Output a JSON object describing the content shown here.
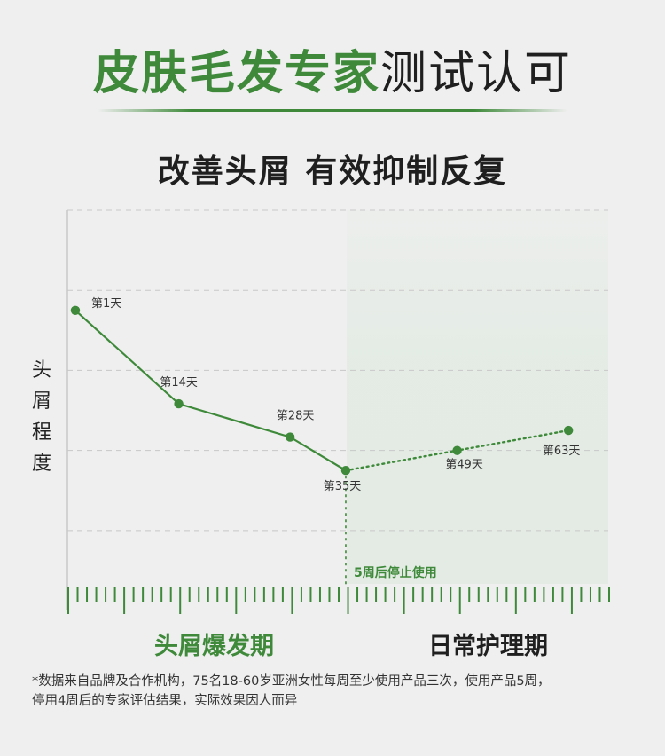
{
  "header": {
    "title_green": "皮肤毛发专家",
    "title_dark": "测试认可",
    "subtitle": "改善头屑 有效抑制反复"
  },
  "colors": {
    "accent": "#3e8a3a",
    "text": "#1f1f1f",
    "background": "#efefef",
    "shaded_region": "#e3ebe4",
    "grid": "#c8c8c8"
  },
  "chart_data": {
    "type": "line",
    "ylabel": "头屑程度",
    "x": [
      1,
      14,
      28,
      35,
      49,
      63
    ],
    "labels": [
      "第1天",
      "第14天",
      "第28天",
      "第35天",
      "第49天",
      "第63天"
    ],
    "values": [
      3.3,
      1.9,
      1.4,
      0.9,
      1.2,
      1.5
    ],
    "ylim": [
      -0.8,
      4.8
    ],
    "xlim": [
      0,
      68
    ],
    "grid": true,
    "solid_until_index": 3,
    "annotation": {
      "text": "5周后停止使用",
      "at_x": 35
    },
    "phases": [
      {
        "label": "头屑爆发期",
        "from_x": 0,
        "to_x": 35
      },
      {
        "label": "日常护理期",
        "from_x": 35,
        "to_x": 68
      }
    ]
  },
  "footnote": {
    "line1": "*数据来自品牌及合作机构，75名18-60岁亚洲女性每周至少使用产品三次，使用产品5周，",
    "line2": "停用4周后的专家评估结果，实际效果因人而异"
  }
}
